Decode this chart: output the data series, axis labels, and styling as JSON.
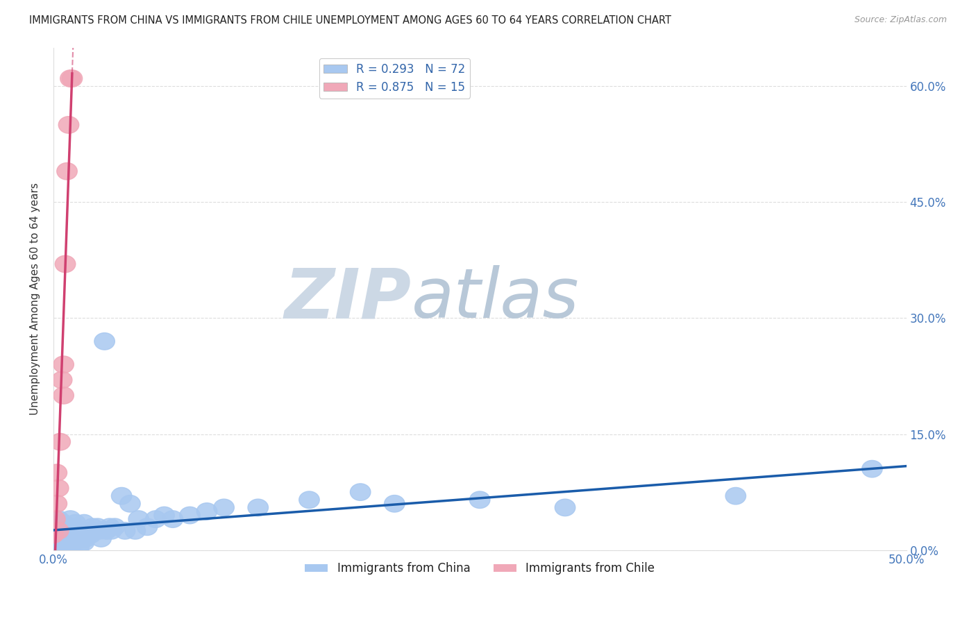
{
  "title": "IMMIGRANTS FROM CHINA VS IMMIGRANTS FROM CHILE UNEMPLOYMENT AMONG AGES 60 TO 64 YEARS CORRELATION CHART",
  "source": "Source: ZipAtlas.com",
  "ylabel": "Unemployment Among Ages 60 to 64 years",
  "xlim": [
    0.0,
    0.5
  ],
  "ylim": [
    0.0,
    0.65
  ],
  "yticks": [
    0.0,
    0.15,
    0.3,
    0.45,
    0.6
  ],
  "ytick_labels": [
    "0.0%",
    "15.0%",
    "30.0%",
    "45.0%",
    "60.0%"
  ],
  "xtick_labels_ends": [
    "0.0%",
    "50.0%"
  ],
  "china_R": 0.293,
  "china_N": 72,
  "chile_R": 0.875,
  "chile_N": 15,
  "china_color": "#a8c8f0",
  "chile_color": "#f0a8b8",
  "china_line_color": "#1a5caa",
  "chile_line_color": "#d04070",
  "china_scatter_x": [
    0.001,
    0.002,
    0.002,
    0.003,
    0.003,
    0.003,
    0.004,
    0.004,
    0.004,
    0.005,
    0.005,
    0.005,
    0.005,
    0.006,
    0.006,
    0.006,
    0.007,
    0.007,
    0.007,
    0.008,
    0.008,
    0.009,
    0.009,
    0.01,
    0.01,
    0.01,
    0.011,
    0.012,
    0.012,
    0.013,
    0.013,
    0.014,
    0.015,
    0.015,
    0.016,
    0.017,
    0.018,
    0.018,
    0.019,
    0.02,
    0.021,
    0.022,
    0.023,
    0.025,
    0.026,
    0.027,
    0.028,
    0.03,
    0.031,
    0.033,
    0.034,
    0.036,
    0.04,
    0.042,
    0.045,
    0.048,
    0.05,
    0.055,
    0.06,
    0.065,
    0.07,
    0.08,
    0.09,
    0.1,
    0.12,
    0.15,
    0.18,
    0.2,
    0.25,
    0.3,
    0.4,
    0.48
  ],
  "china_scatter_y": [
    0.02,
    0.005,
    0.03,
    0.01,
    0.025,
    0.04,
    0.005,
    0.02,
    0.035,
    0.005,
    0.015,
    0.025,
    0.035,
    0.005,
    0.02,
    0.035,
    0.005,
    0.015,
    0.03,
    0.01,
    0.025,
    0.01,
    0.03,
    0.005,
    0.02,
    0.04,
    0.025,
    0.01,
    0.03,
    0.015,
    0.035,
    0.02,
    0.005,
    0.025,
    0.02,
    0.025,
    0.01,
    0.035,
    0.015,
    0.02,
    0.025,
    0.02,
    0.03,
    0.025,
    0.03,
    0.025,
    0.015,
    0.27,
    0.025,
    0.03,
    0.025,
    0.03,
    0.07,
    0.025,
    0.06,
    0.025,
    0.04,
    0.03,
    0.04,
    0.045,
    0.04,
    0.045,
    0.05,
    0.055,
    0.055,
    0.065,
    0.075,
    0.06,
    0.065,
    0.055,
    0.07,
    0.105
  ],
  "chile_scatter_x": [
    0.0,
    0.001,
    0.002,
    0.002,
    0.003,
    0.003,
    0.004,
    0.005,
    0.006,
    0.006,
    0.007,
    0.008,
    0.009,
    0.01,
    0.011
  ],
  "chile_scatter_y": [
    0.02,
    0.04,
    0.06,
    0.1,
    0.025,
    0.08,
    0.14,
    0.22,
    0.2,
    0.24,
    0.37,
    0.49,
    0.55,
    0.61,
    0.61
  ],
  "chile_line_x_start": 0.0,
  "chile_line_x_end": 0.011,
  "chile_line_x_dash_start": 0.008,
  "chile_line_x_dash_end": 0.02,
  "watermark_zip": "ZIP",
  "watermark_atlas": "atlas",
  "watermark_color_zip": "#c5d5e5",
  "watermark_color_atlas": "#c0cce0",
  "background_color": "#ffffff",
  "grid_color": "#dddddd",
  "grid_linestyle": "--"
}
